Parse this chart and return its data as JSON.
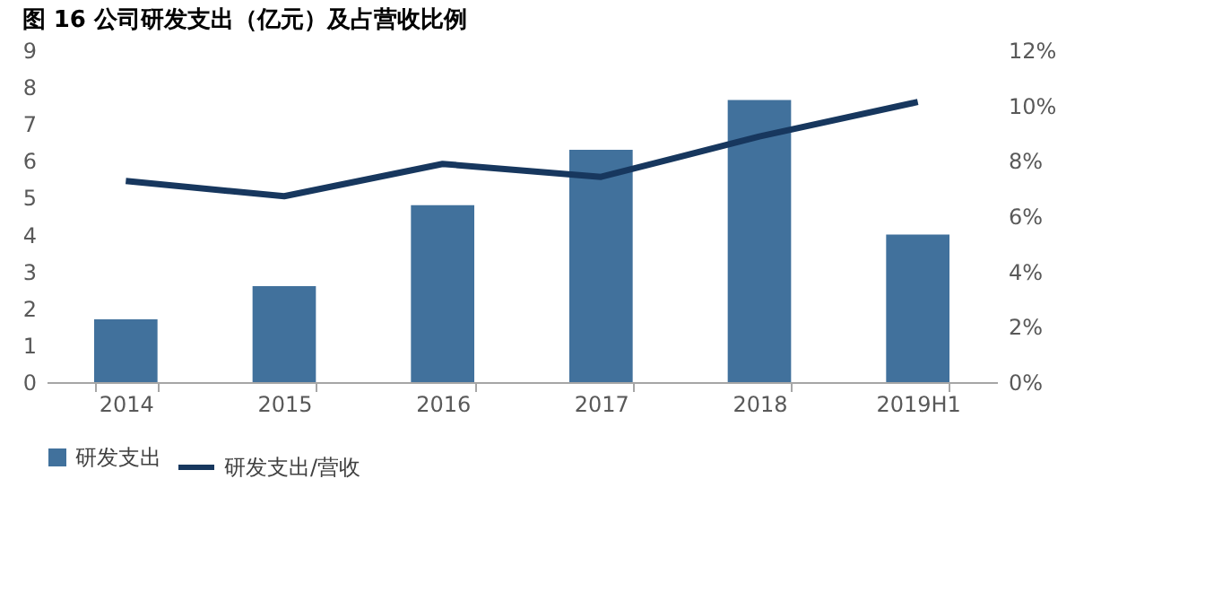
{
  "chart_data": {
    "type": "bar",
    "title": "图 16 公司研发支出（亿元）及占营收比例",
    "categories": [
      "2014",
      "2015",
      "2016",
      "2017",
      "2018",
      "2019H1"
    ],
    "series": [
      {
        "name": "研发支出",
        "color": "#41719c",
        "values": [
          1.7,
          2.6,
          4.8,
          6.3,
          7.65,
          4.0
        ]
      },
      {
        "name": "研发支出/营收",
        "type": "line",
        "axis": "y2",
        "color": "#17375e",
        "values": [
          7.27,
          6.72,
          7.89,
          7.42,
          8.88,
          10.13
        ]
      }
    ],
    "ylim": [
      0,
      9
    ],
    "yticks": [
      0,
      1,
      2,
      3,
      4,
      5,
      6,
      7,
      8,
      9
    ],
    "y2lim": [
      0,
      12
    ],
    "y2ticks": [
      {
        "value": 0,
        "label": "0%"
      },
      {
        "value": 2,
        "label": "2%"
      },
      {
        "value": 4,
        "label": "4%"
      },
      {
        "value": 6,
        "label": "6%"
      },
      {
        "value": 8,
        "label": "8%"
      },
      {
        "value": 10,
        "label": "10%"
      },
      {
        "value": 12,
        "label": "12%"
      }
    ],
    "grid": false,
    "legend": "bottom",
    "marker": "none",
    "line_style": "solid"
  }
}
